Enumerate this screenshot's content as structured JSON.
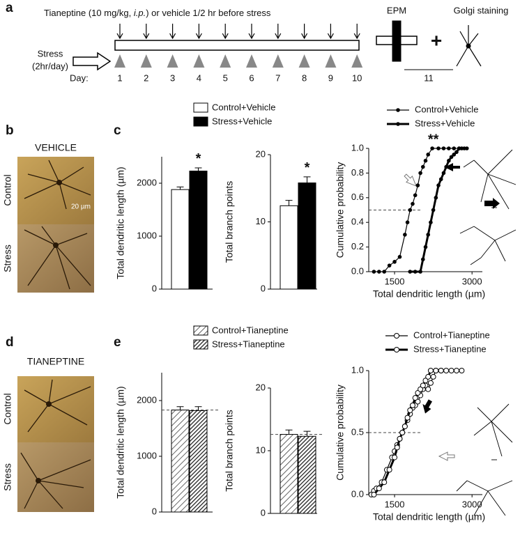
{
  "panel_labels": [
    "a",
    "b",
    "c",
    "d",
    "e"
  ],
  "schedule": {
    "treatment": [
      "Tianeptine (10 mg/kg, ",
      "i.p.",
      ") or vehicle 1/2 hr before stress"
    ],
    "stress": [
      "Stress",
      "(2hr/day)"
    ],
    "day_label": "Day:",
    "days": [
      "1",
      "2",
      "3",
      "4",
      "5",
      "6",
      "7",
      "8",
      "9",
      "10"
    ],
    "epm": "EPM",
    "golgi": "Golgi staining",
    "plus": "+",
    "test_day": "11"
  },
  "micrographs": {
    "b": {
      "title": "VEHICLE",
      "rows": [
        "Control",
        "Stress"
      ],
      "scale": "20 µm"
    },
    "d": {
      "title": "TIANEPTINE",
      "rows": [
        "Control",
        "Stress"
      ]
    }
  },
  "chart_data": [
    {
      "type": "bar",
      "ylabel": "Total dendritic length (µm)",
      "ylim": [
        0,
        2500
      ],
      "yticks": [
        0,
        1000,
        2000
      ],
      "series": [
        {
          "name": "Control+Vehicle",
          "color": "#ffffff",
          "values": [
            1880
          ],
          "errors": [
            50
          ]
        },
        {
          "name": "Stress+Vehicle",
          "color": "#000000",
          "values": [
            2230
          ],
          "errors": [
            60
          ]
        }
      ],
      "annotations": [
        "*"
      ]
    },
    {
      "type": "bar",
      "ylabel": "Total branch points",
      "ylim": [
        0,
        20
      ],
      "yticks": [
        0,
        10,
        20
      ],
      "series": [
        {
          "color": "#ffffff",
          "values": [
            12.4
          ],
          "errors": [
            0.8
          ]
        },
        {
          "color": "#000000",
          "values": [
            15.8
          ],
          "errors": [
            0.9
          ]
        }
      ],
      "annotations": [
        "*"
      ]
    },
    {
      "type": "line",
      "xlabel": "Total dendritic length (µm)",
      "ylabel": "Cumulative probability",
      "xlim": [
        1000,
        3200
      ],
      "xticks": [
        1500,
        3000
      ],
      "ylim": [
        0,
        1
      ],
      "yticks": [
        {
          "value": 0,
          "label": "0.0"
        },
        {
          "value": 0.2,
          "label": "0.2"
        },
        {
          "value": 0.4,
          "label": "0.4"
        },
        {
          "value": 0.6,
          "label": "0.6"
        },
        {
          "value": 0.8,
          "label": "0.8"
        },
        {
          "value": 1,
          "label": "1.0"
        }
      ],
      "reference_line": 0.5,
      "series": [
        {
          "name": "Control+Vehicle",
          "color": "#000000",
          "marker": "filled",
          "linewidth": 1.2,
          "x": [
            1100,
            1200,
            1300,
            1400,
            1500,
            1600,
            1700,
            1750,
            1800,
            1850,
            1900,
            1950,
            2000,
            2050,
            2100,
            2150,
            2230,
            2350,
            2450,
            2550,
            2650,
            2750,
            2850
          ],
          "values": [
            0,
            0,
            0,
            0.05,
            0.08,
            0.12,
            0.3,
            0.4,
            0.5,
            0.55,
            0.62,
            0.7,
            0.8,
            0.85,
            0.9,
            0.95,
            1,
            1,
            1,
            1,
            1,
            1,
            1
          ]
        },
        {
          "name": "Stress+Vehicle",
          "color": "#000000",
          "marker": "filled",
          "linewidth": 3,
          "x": [
            1800,
            1900,
            2000,
            2050,
            2100,
            2150,
            2200,
            2250,
            2300,
            2350,
            2400,
            2450,
            2500,
            2550,
            2600,
            2650,
            2700,
            2750,
            2800,
            2900
          ],
          "values": [
            0,
            0,
            0,
            0.1,
            0.2,
            0.3,
            0.4,
            0.5,
            0.6,
            0.7,
            0.75,
            0.8,
            0.85,
            0.9,
            0.93,
            0.95,
            0.97,
            1,
            1,
            1
          ]
        }
      ],
      "annotations": [
        "**"
      ]
    },
    {
      "type": "bar",
      "ylabel": "Total dendritic length (µm)",
      "ylim": [
        0,
        2500
      ],
      "yticks": [
        0,
        1000,
        2000
      ],
      "reference_line": 1830,
      "series": [
        {
          "name": "Control+Tianeptine",
          "color": "#ffffff",
          "hatch": "light",
          "values": [
            1830
          ],
          "errors": [
            60
          ]
        },
        {
          "name": "Stress+Tianeptine",
          "color": "#333333",
          "hatch": "dark",
          "values": [
            1820
          ],
          "errors": [
            70
          ]
        }
      ]
    },
    {
      "type": "bar",
      "ylabel": "Total branch points",
      "ylim": [
        0,
        20
      ],
      "yticks": [
        0,
        10,
        20
      ],
      "reference_line": 12.6,
      "series": [
        {
          "color": "#ffffff",
          "hatch": "light",
          "values": [
            12.6
          ],
          "errors": [
            0.7
          ]
        },
        {
          "color": "#333333",
          "hatch": "dark",
          "values": [
            12.3
          ],
          "errors": [
            0.8
          ]
        }
      ]
    },
    {
      "type": "line",
      "xlabel": "Total dendritic length (µm)",
      "ylabel": "Cumulative probability",
      "xlim": [
        1000,
        3200
      ],
      "xticks": [
        1500,
        3000
      ],
      "ylim": [
        0,
        1
      ],
      "yticks": [
        {
          "value": 0,
          "label": "0.0"
        },
        {
          "value": 0.5,
          "label": "0.5"
        },
        {
          "value": 1,
          "label": "1.0"
        }
      ],
      "reference_line": 0.5,
      "series": [
        {
          "name": "Control+Tianeptine",
          "color": "#000000",
          "marker": "open",
          "linewidth": 1.2,
          "x": [
            1050,
            1100,
            1150,
            1250,
            1350,
            1450,
            1500,
            1550,
            1600,
            1650,
            1700,
            1750,
            1800,
            1850,
            1900,
            1950,
            2000,
            2050,
            2100,
            2150,
            2200,
            2250,
            2300,
            2400,
            2500,
            2600,
            2700,
            2800
          ],
          "values": [
            0,
            0.03,
            0.05,
            0.1,
            0.2,
            0.3,
            0.35,
            0.4,
            0.45,
            0.5,
            0.55,
            0.6,
            0.65,
            0.7,
            0.72,
            0.75,
            0.8,
            0.85,
            0.88,
            0.85,
            0.9,
            0.95,
            1,
            1,
            1,
            1,
            1,
            1
          ]
        },
        {
          "name": "Stress+Tianeptine",
          "color": "#000000",
          "marker": "open",
          "linewidth": 3,
          "x": [
            1100,
            1200,
            1300,
            1400,
            1500,
            1550,
            1600,
            1650,
            1700,
            1750,
            1800,
            1850,
            1900,
            1950,
            2000,
            2050,
            2100,
            2150,
            2200,
            2300,
            2400
          ],
          "values": [
            0,
            0.05,
            0.1,
            0.2,
            0.3,
            0.38,
            0.45,
            0.5,
            0.55,
            0.62,
            0.68,
            0.72,
            0.78,
            0.82,
            0.85,
            0.88,
            0.92,
            0.95,
            1,
            1,
            1
          ]
        }
      ]
    }
  ]
}
